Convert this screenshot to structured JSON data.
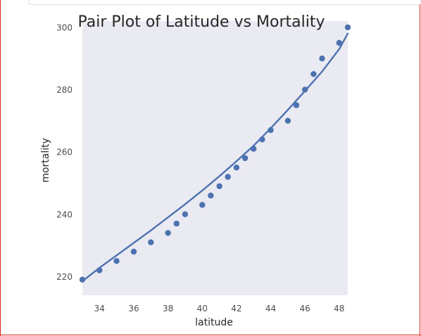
{
  "chart_data": {
    "type": "scatter",
    "title": "Pair Plot of Latitude vs Mortality",
    "xlabel": "latitude",
    "ylabel": "mortality",
    "xlim": [
      33,
      48.5
    ],
    "ylim": [
      214,
      302
    ],
    "xticks": [
      "34",
      "36",
      "38",
      "40",
      "42",
      "44",
      "46",
      "48"
    ],
    "yticks": [
      "220",
      "240",
      "260",
      "280",
      "300"
    ],
    "grid": false,
    "colors": {
      "background": "#eaeaf2",
      "series": "#4c72b0"
    },
    "points": {
      "x": [
        33.0,
        34.0,
        35.0,
        36.0,
        37.0,
        38.0,
        38.5,
        39.0,
        40.0,
        40.5,
        41.0,
        41.5,
        42.0,
        42.5,
        43.0,
        43.5,
        44.0,
        45.0,
        45.5,
        46.0,
        46.5,
        47.0,
        48.0,
        48.5
      ],
      "y": [
        219,
        222,
        225,
        228,
        231,
        234,
        237,
        240,
        243,
        246,
        249,
        252,
        255,
        258,
        261,
        264,
        267,
        270,
        275,
        280,
        285,
        290,
        295,
        300
      ]
    },
    "fit_line": {
      "x": [
        33,
        34,
        35,
        36,
        37,
        38,
        39,
        40,
        41,
        42,
        43,
        44,
        45,
        46,
        47,
        48,
        48.5
      ],
      "y": [
        218.5,
        222.8,
        226.8,
        230.8,
        234.8,
        239.0,
        243.2,
        247.6,
        252.2,
        257.0,
        262.0,
        267.6,
        273.5,
        279.6,
        285.8,
        293.0,
        298.0
      ]
    }
  }
}
